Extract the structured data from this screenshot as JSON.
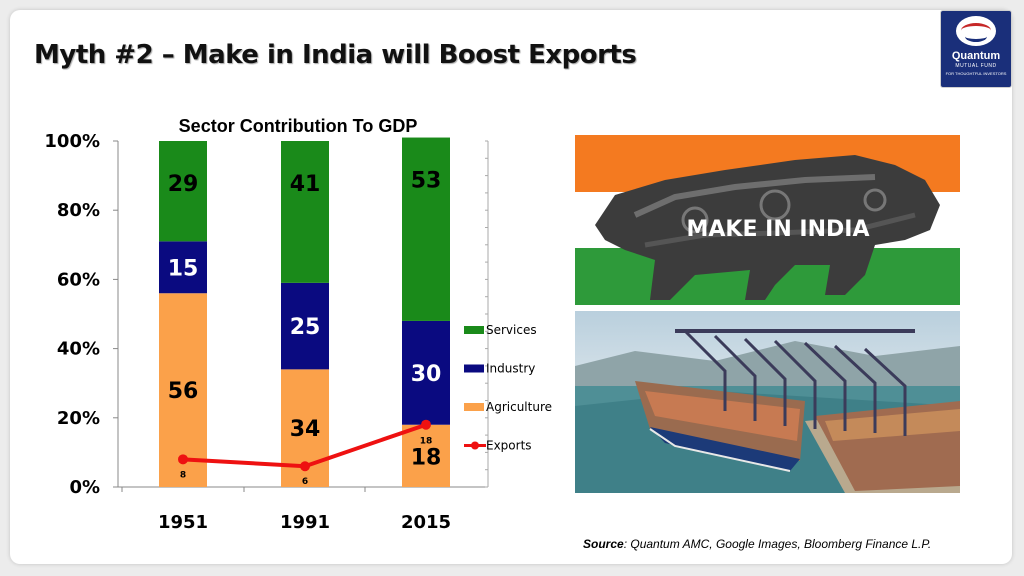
{
  "slide": {
    "title": "Myth #2 – Make in India will Boost Exports",
    "source_label": "Source",
    "source_text": ": Quantum AMC, Google Images, Bloomberg Finance L.P."
  },
  "logo": {
    "name": "Quantum",
    "line2": "MUTUAL FUND",
    "line3": "FOR THOUGHTFUL INVESTORS"
  },
  "images": {
    "make_in_india_text": "MAKE IN INDIA"
  },
  "colors": {
    "services": "#1a8a1a",
    "industry": "#0a0a80",
    "agriculture": "#fba14a",
    "exports": "#ee1111"
  },
  "chart_data": {
    "type": "bar",
    "stacked": true,
    "title": "Sector Contribution To GDP",
    "categories": [
      "1951",
      "1991",
      "2015"
    ],
    "y_ticks": [
      "0%",
      "20%",
      "40%",
      "60%",
      "80%",
      "100%"
    ],
    "ylim": [
      0,
      100
    ],
    "series": [
      {
        "name": "Agriculture",
        "values": [
          56,
          34,
          18
        ]
      },
      {
        "name": "Industry",
        "values": [
          15,
          25,
          30
        ]
      },
      {
        "name": "Services",
        "values": [
          29,
          41,
          53
        ]
      }
    ],
    "line_series": {
      "name": "Exports",
      "values": [
        8,
        6,
        18
      ]
    },
    "legend_order": [
      "Services",
      "Industry",
      "Agriculture",
      "Exports"
    ],
    "legend_position": "right"
  }
}
